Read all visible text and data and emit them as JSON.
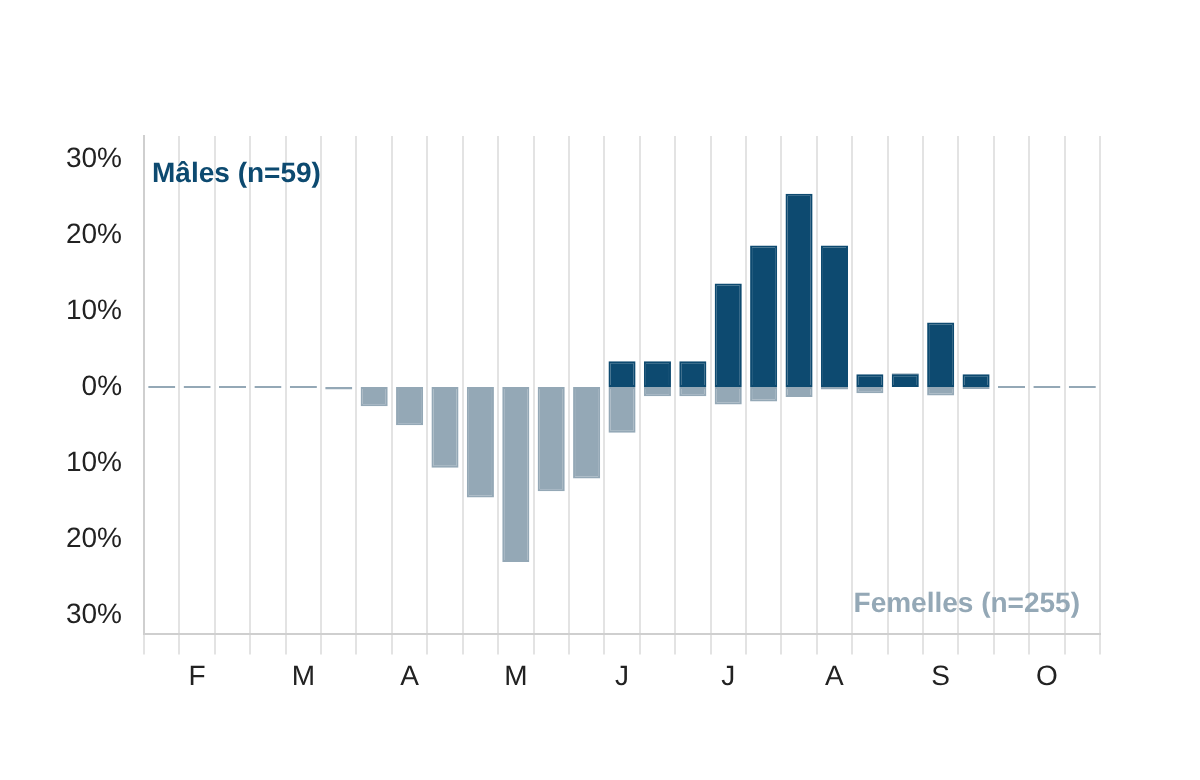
{
  "chart_data": {
    "type": "bar",
    "stacked": true,
    "grid": "x",
    "legend": false,
    "categories": [
      null,
      "F",
      null,
      null,
      "M",
      null,
      null,
      "A",
      null,
      null,
      "M",
      null,
      null,
      "J",
      null,
      null,
      "J",
      null,
      null,
      "A",
      null,
      null,
      "S",
      null,
      null,
      "O",
      null
    ],
    "series": [
      {
        "name": "Mâles (n=59)",
        "color": "#0d4a70",
        "values": [
          null,
          null,
          null,
          null,
          null,
          null,
          null,
          null,
          null,
          null,
          null,
          null,
          null,
          3.4,
          3.4,
          3.4,
          13.6,
          18.6,
          25.4,
          18.6,
          1.7,
          1.7,
          8.5,
          1.7,
          null,
          null,
          null
        ]
      },
      {
        "name": "Femelles (n=255)",
        "color": "#94a8b6",
        "values": [
          0,
          0,
          0,
          0,
          0,
          -0.3,
          -2.5,
          -5,
          -10.6,
          -14.5,
          -23,
          -13.7,
          -12,
          -6,
          -1.2,
          -1.2,
          -2.3,
          -1.9,
          -1.3,
          -0.3,
          -0.8,
          0,
          -1.1,
          -0.2,
          0,
          0,
          0
        ]
      }
    ],
    "ylim": [
      -32.5,
      33
    ],
    "yticks": [
      {
        "value": -30,
        "label": "30%"
      },
      {
        "value": -20,
        "label": "20%"
      },
      {
        "value": -10,
        "label": "10%"
      },
      {
        "value": 0,
        "label": "0%"
      },
      {
        "value": 10,
        "label": "10%"
      },
      {
        "value": 20,
        "label": "20%"
      },
      {
        "value": 30,
        "label": "30%"
      }
    ]
  }
}
